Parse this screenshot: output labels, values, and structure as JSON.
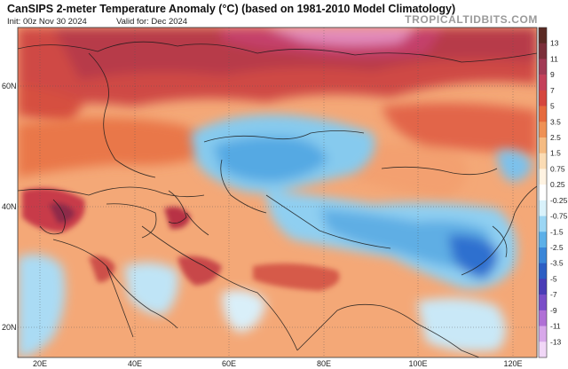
{
  "header": {
    "title": "CanSIPS 2-meter Temperature Anomaly (°C) (based on 1981-2010 Model Climatology)",
    "init": "Init: 00z Nov 30 2024",
    "valid": "Valid for: Dec 2024",
    "brand": "TROPICALTIDBITS.COM"
  },
  "axes": {
    "lat_labels": [
      "60N",
      "40N",
      "20N"
    ],
    "lon_labels": [
      "20E",
      "40E",
      "60E",
      "80E",
      "100E",
      "120E"
    ]
  },
  "colorbar": {
    "levels": [
      "13",
      "11",
      "9",
      "7",
      "5",
      "3.5",
      "2.5",
      "1.5",
      "0.75",
      "0.25",
      "-0.25",
      "-0.75",
      "-1.5",
      "-2.5",
      "-3.5",
      "-5",
      "-7",
      "-9",
      "-11",
      "-13"
    ],
    "colors": [
      "#5a2a24",
      "#7b2f3a",
      "#a13a55",
      "#c4405a",
      "#d5463e",
      "#e66a3d",
      "#ef9155",
      "#f5bb82",
      "#fbdcb4",
      "#fff3e2",
      "#ffffff",
      "#d9f2fb",
      "#9bd6f4",
      "#5cb0e8",
      "#3a86d8",
      "#2c5ec4",
      "#4a3cb6",
      "#7a4ec8",
      "#b070d6",
      "#d8a8ea",
      "#f1d7f7"
    ]
  },
  "colors": {
    "land_warm_base": "#f7b98a",
    "sea": "#fbe2c6",
    "cold": "#7ec6ee",
    "deep_cold": "#3b86d8",
    "hot": "#c43a4b",
    "very_hot": "#d86aa0"
  }
}
